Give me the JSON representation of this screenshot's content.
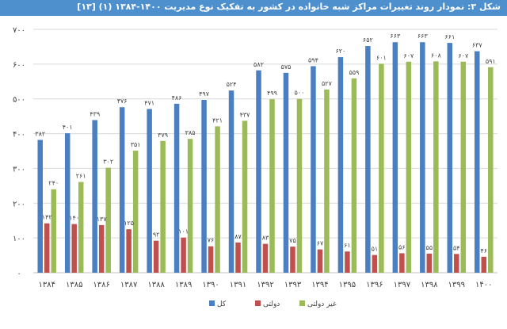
{
  "title": "شکل ۳: نمودار روند تغییرات مراکز شبه خانواده در کشور به تفکیک نوع مدیریت ۱۴۰۰-۱۳۸۴ (۱) [۱۳]",
  "chart_data": {
    "type": "bar",
    "title": "شکل ۳: نمودار روند تغییرات مراکز شبه خانواده در کشور به تفکیک نوع مدیریت ۱۴۰۰-۱۳۸۴ (۱) [۱۳]",
    "categories": [
      "۱۳۸۴",
      "۱۳۸۵",
      "۱۳۸۶",
      "۱۳۸۷",
      "۱۳۸۸",
      "۱۳۸۹",
      "۱۳۹۰",
      "۱۳۹۱",
      "۱۳۹۲",
      "۱۳۹۳",
      "۱۳۹۴",
      "۱۳۹۵",
      "۱۳۹۶",
      "۱۳۹۷",
      "۱۳۹۸",
      "۱۳۹۹",
      "۱۴۰۰"
    ],
    "series": [
      {
        "name": "کل",
        "color": "#4a7fc1",
        "values": [
          382,
          401,
          439,
          476,
          471,
          486,
          497,
          524,
          582,
          575,
          594,
          620,
          652,
          663,
          663,
          661,
          637
        ],
        "labels": [
          "۳۸۲",
          "۴۰۱",
          "۴۳۹",
          "۴۷۶",
          "۴۷۱",
          "۴۸۶",
          "۴۹۷",
          "۵۲۴",
          "۵۸۲",
          "۵۷۵",
          "۵۹۴",
          "۶۲۰",
          "۶۵۲",
          "۶۶۳",
          "۶۶۳",
          "۶۶۱",
          "۶۳۷"
        ]
      },
      {
        "name": "دولتی",
        "color": "#c0504d",
        "values": [
          142,
          140,
          137,
          125,
          92,
          101,
          76,
          87,
          83,
          75,
          67,
          61,
          51,
          56,
          55,
          54,
          46
        ],
        "labels": [
          "۱۴۲",
          "۱۴۰",
          "۱۳۷",
          "۱۲۵",
          "۹۲",
          "۱۰۱",
          "۷۶",
          "۸۷",
          "۸۳",
          "۷۵",
          "۶۷",
          "۶۱",
          "۵۱",
          "۵۶",
          "۵۵",
          "۵۴",
          "۴۶"
        ]
      },
      {
        "name": "غیر دولتی",
        "color": "#9bbb59",
        "values": [
          240,
          261,
          302,
          351,
          379,
          385,
          421,
          437,
          499,
          500,
          527,
          559,
          601,
          607,
          608,
          607,
          591
        ],
        "labels": [
          "۲۴۰",
          "۲۶۱",
          "۳۰۲",
          "۳۵۱",
          "۳۷۹",
          "۳۸۵",
          "۴۲۱",
          "۴۳۷",
          "۴۹۹",
          "۵۰۰",
          "۵۲۷",
          "۵۵۹",
          "۶۰۱",
          "۶۰۷",
          "۶۰۸",
          "۶۰۷",
          "۵۹۱"
        ]
      }
    ],
    "ylim": [
      0,
      700
    ],
    "yticks": [
      0,
      100,
      200,
      300,
      400,
      500,
      600,
      700
    ],
    "ytick_labels": [
      "۰",
      "۱۰۰",
      "۲۰۰",
      "۳۰۰",
      "۴۰۰",
      "۵۰۰",
      "۶۰۰",
      "۷۰۰"
    ],
    "grid": true,
    "legend_position": "bottom",
    "xlabel": "",
    "ylabel": ""
  }
}
